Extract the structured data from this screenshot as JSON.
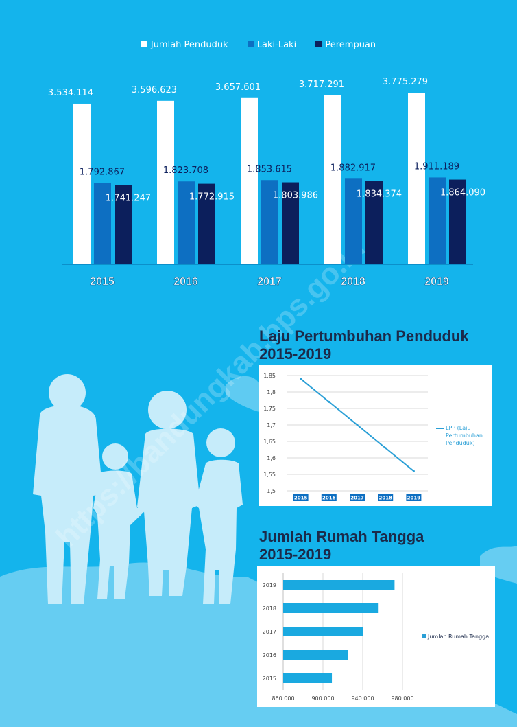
{
  "legend": {
    "total_label": "Jumlah Penduduk",
    "male_label": "Laki-Laki",
    "female_label": "Perempuan"
  },
  "colors": {
    "background": "#14b4ec",
    "total": "#ffffff",
    "male": "#0d6fc2",
    "female": "#0c1f5c",
    "title": "#1b2a4a",
    "line": "#2a9fd6"
  },
  "watermark": "https://bandungkab.bps.go.id",
  "chart_data": [
    {
      "type": "bar",
      "categories": [
        "2015",
        "2016",
        "2017",
        "2018",
        "2019"
      ],
      "series": [
        {
          "name": "Jumlah Penduduk",
          "values": [
            3534114,
            3596623,
            3657601,
            3717291,
            3775279
          ],
          "labels": [
            "3.534.114",
            "3.596.623",
            "3.657.601",
            "3.717.291",
            "3.775.279"
          ]
        },
        {
          "name": "Laki-Laki",
          "values": [
            1792867,
            1823708,
            1853615,
            1882917,
            1911189
          ],
          "labels": [
            "1.792.867",
            "1.823.708",
            "1.853.615",
            "1.882.917",
            "1.911.189"
          ]
        },
        {
          "name": "Perempuan",
          "values": [
            1741247,
            1772915,
            1803986,
            1834374,
            1864090
          ],
          "labels": [
            "1.741.247",
            "1.772.915",
            "1.803.986",
            "1.834.374",
            "1.864.090"
          ]
        }
      ],
      "legend": "top"
    },
    {
      "type": "line",
      "title": "Laju Pertumbuhan Penduduk 2015-2019",
      "categories": [
        "2015",
        "2016",
        "2017",
        "2018",
        "2019"
      ],
      "series": [
        {
          "name": "LPP (Laju Pertumbuhan Penduduk)",
          "values": [
            1.84,
            1.77,
            1.7,
            1.63,
            1.56
          ]
        }
      ],
      "ylim": [
        1.5,
        1.85
      ],
      "yticks": [
        "1,5",
        "1,55",
        "1,6",
        "1,65",
        "1,7",
        "1,75",
        "1,8",
        "1,85"
      ],
      "grid": true,
      "legend": "right"
    },
    {
      "type": "bar",
      "orientation": "horizontal",
      "title": "Jumlah Rumah Tangga 2015-2019",
      "categories": [
        "2019",
        "2018",
        "2017",
        "2016",
        "2015"
      ],
      "series": [
        {
          "name": "Jumlah Rumah Tangga",
          "values": [
            972000,
            956000,
            940000,
            925000,
            909000
          ]
        }
      ],
      "xlim": [
        860000,
        980000
      ],
      "xticks": [
        "860.000",
        "900.000",
        "940.000",
        "980.000"
      ],
      "legend": "right"
    }
  ],
  "sections": {
    "lpp_title_1": "Laju Pertumbuhan Penduduk",
    "lpp_title_2": "2015-2019",
    "rt_title_1": "Jumlah Rumah Tangga",
    "rt_title_2": "2015-2019",
    "lpp_legend_1": "LPP (Laju",
    "lpp_legend_2": "Pertumbuhan",
    "lpp_legend_3": "Penduduk)",
    "rt_legend": "Jumlah Rumah Tangga"
  }
}
